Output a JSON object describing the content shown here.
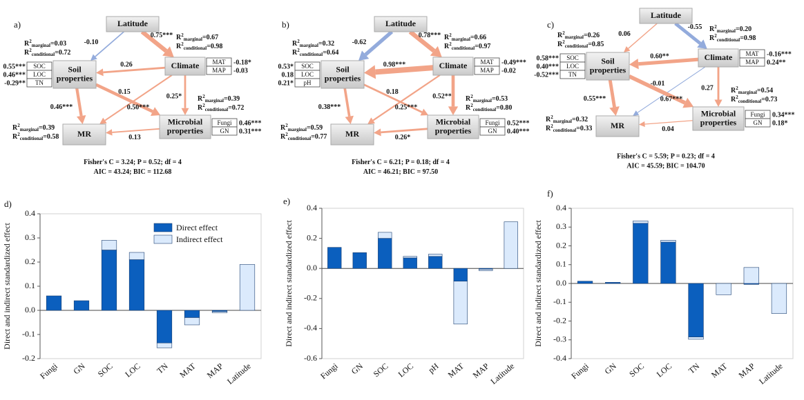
{
  "r2_text": {
    "R": "R",
    "sup": "2",
    "marginal": "marginal",
    "conditional": "conditional"
  },
  "path_colors": {
    "positive": "#f2a488",
    "negative": "#93abdc"
  },
  "diagrams": [
    {
      "panel_label": "a)",
      "nodes": [
        {
          "label": [
            "Latitude"
          ]
        },
        {
          "label": [
            "Soil",
            "properties"
          ],
          "r2": {
            "marginal": "=0.03",
            "conditional": "=0.72"
          },
          "table": [
            [
              "SOC",
              "0.55***"
            ],
            [
              "LOC",
              "0.46***"
            ],
            [
              "TN",
              "-0.29**"
            ]
          ]
        },
        {
          "label": [
            "Climate"
          ],
          "r2": {
            "marginal": "=0.67",
            "conditional": "=0.98"
          },
          "table": [
            [
              "MAT",
              "-0.18*"
            ],
            [
              "MAP",
              "-0.03"
            ]
          ]
        },
        {
          "label": [
            "MR"
          ],
          "r2": {
            "marginal": "=0.39",
            "conditional": "=0.58"
          }
        },
        {
          "label": [
            "Microbial",
            "properties"
          ],
          "r2": {
            "marginal": "=0.39",
            "conditional": "=0.72"
          },
          "table": [
            [
              "Fungi",
              "0.46***"
            ],
            [
              "GN",
              "0.31***"
            ]
          ]
        }
      ],
      "paths": [
        "-0.10",
        "0.75***",
        "0.26",
        "0.15",
        "0.46***",
        "0.50***",
        "0.25*",
        "0.13"
      ],
      "stats": [
        "Fisher's C = 3.24;  P = 0.52; df = 4",
        "AIC = 43.24; BIC = 112.68"
      ]
    },
    {
      "panel_label": "b)",
      "nodes": [
        {
          "label": [
            "Latitude"
          ]
        },
        {
          "label": [
            "Soil",
            "properties"
          ],
          "r2": {
            "marginal": "=0.32",
            "conditional": "=0.64"
          },
          "table": [
            [
              "SOC",
              "0.53*"
            ],
            [
              "LOC",
              "0.18"
            ],
            [
              "pH",
              "0.21*"
            ]
          ]
        },
        {
          "label": [
            "Climate"
          ],
          "r2": {
            "marginal": "=0.66",
            "conditional": "=0.97"
          },
          "table": [
            [
              "MAT",
              "-0.49***"
            ],
            [
              "MAP",
              "-0.02"
            ]
          ]
        },
        {
          "label": [
            "MR"
          ],
          "r2": {
            "marginal": "=0.59",
            "conditional": "=0.77"
          }
        },
        {
          "label": [
            "Microbial",
            "properties"
          ],
          "r2": {
            "marginal": "=0.53",
            "conditional": "=0.80"
          },
          "table": [
            [
              "Fungi",
              "0.52***"
            ],
            [
              "GN",
              "0.40***"
            ]
          ]
        }
      ],
      "paths": [
        "-0.62",
        "0.78***",
        "0.98***",
        "0.18",
        "0.38***",
        "0.25***",
        "0.52**",
        "0.26*"
      ],
      "stats": [
        "Fisher's C = 6.21;  P = 0.18; df = 4",
        "AIC = 46.21; BIC = 97.50"
      ]
    },
    {
      "panel_label": "c)",
      "nodes": [
        {
          "label": [
            "Latitude"
          ]
        },
        {
          "label": [
            "Soil",
            "properties"
          ],
          "r2": {
            "marginal": "=0.26",
            "conditional": "=0.85"
          },
          "table": [
            [
              "SOC",
              "0.58***"
            ],
            [
              "LOC",
              "0.40***"
            ],
            [
              "TN",
              "-0.52***"
            ]
          ]
        },
        {
          "label": [
            "Climate"
          ],
          "r2": {
            "marginal": "=0.20",
            "conditional": "=0.98"
          },
          "table": [
            [
              "MAT",
              "-0.16***"
            ],
            [
              "MAP",
              "0.24**"
            ]
          ]
        },
        {
          "label": [
            "MR"
          ],
          "r2": {
            "marginal": "=0.32",
            "conditional": "=0.33"
          }
        },
        {
          "label": [
            "Microbial",
            "properties"
          ],
          "r2": {
            "marginal": "=0.54",
            "conditional": "=0.73"
          },
          "table": [
            [
              "Fungi",
              "0.34***"
            ],
            [
              "GN",
              "0.18*"
            ]
          ]
        }
      ],
      "paths": [
        "0.06",
        "-0.55",
        "0.60**",
        "-0.01",
        "0.55***",
        "0.67***",
        "0.27",
        "0.04"
      ],
      "stats": [
        "Fisher's C = 5.59;  P = 0.23; df = 4",
        "AIC = 45.59; BIC = 104.70"
      ]
    }
  ],
  "chart_data": [
    {
      "type": "bar",
      "stacked": true,
      "panel_label": "d)",
      "y_label": "Direct and indirect standardized effect",
      "categories": [
        "Fungi",
        "GN",
        "SOC",
        "LOC",
        "TN",
        "MAT",
        "MAP",
        "Latitude"
      ],
      "series": [
        {
          "name": "Direct effect",
          "color": "#0b5fbe",
          "values": [
            0.06,
            0.04,
            0.25,
            0.21,
            -0.135,
            -0.03,
            -0.005,
            0
          ]
        },
        {
          "name": "Indirect effect",
          "color": "#dbeafc",
          "values": [
            0,
            0,
            0.04,
            0.03,
            -0.02,
            -0.03,
            -0.005,
            0.19
          ]
        }
      ],
      "ylim": [
        -0.2,
        0.4
      ],
      "yticks": [
        -0.2,
        -0.1,
        {
          "value": 0,
          "label": "0.0"
        },
        0.1,
        0.2,
        0.3,
        0.4
      ],
      "legend": "upper right"
    },
    {
      "type": "bar",
      "stacked": true,
      "panel_label": "e)",
      "y_label": "Direct and indirect standardized effect",
      "categories": [
        "Fungi",
        "GN",
        "SOC",
        "LOC",
        "pH",
        "MAT",
        "MAP",
        "Latitude"
      ],
      "series": [
        {
          "color": "#0b5fbe",
          "values": [
            0.14,
            0.105,
            0.2,
            0.07,
            0.08,
            -0.085,
            -0.005,
            0
          ]
        },
        {
          "color": "#dbeafc",
          "values": [
            0,
            0,
            0.04,
            0.01,
            0.015,
            -0.285,
            -0.01,
            0.31
          ]
        }
      ],
      "ylim": [
        -0.6,
        0.4
      ],
      "yticks": [
        -0.6,
        -0.4,
        -0.2,
        {
          "value": 0,
          "label": "0.0"
        },
        0.2,
        0.4
      ]
    },
    {
      "type": "bar",
      "stacked": true,
      "panel_label": "f)",
      "y_label": "Direct and indirect standardized effect",
      "categories": [
        "Fungi",
        "GN",
        "SOC",
        "LOC",
        "TN",
        "MAT",
        "MAP",
        "Latitude"
      ],
      "series": [
        {
          "color": "#0b5fbe",
          "values": [
            0.012,
            0.006,
            0.32,
            0.22,
            -0.285,
            0,
            -0.005,
            0
          ]
        },
        {
          "color": "#dbeafc",
          "values": [
            0,
            0,
            0.013,
            0.01,
            -0.012,
            -0.06,
            0.085,
            -0.16
          ]
        }
      ],
      "ylim": [
        -0.4,
        0.4
      ],
      "yticks": [
        -0.4,
        -0.3,
        -0.2,
        -0.1,
        {
          "value": 0,
          "label": "0.0"
        },
        0.1,
        0.2,
        0.3,
        0.4
      ]
    }
  ]
}
